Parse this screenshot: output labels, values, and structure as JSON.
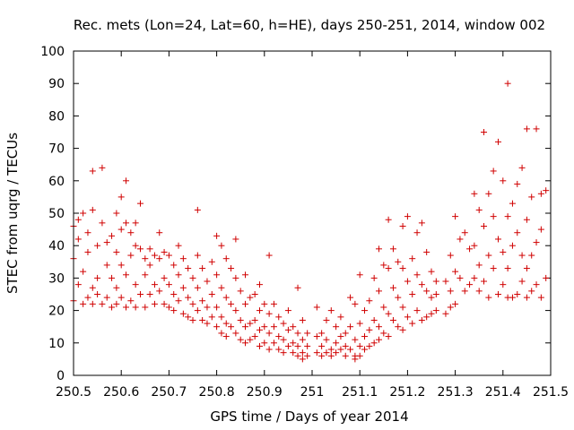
{
  "chart_data": {
    "type": "scatter",
    "title": "Rec. mets (Lon=24, Lat=60, h=HE), days 250-251, 2014, window 002",
    "xlabel": "GPS time / Days of year 2014",
    "ylabel": "STEC from uqrg / TECUs",
    "xlim": [
      250.5,
      251.5
    ],
    "ylim": [
      0,
      100
    ],
    "x_ticks": [
      250.5,
      250.6,
      250.7,
      250.8,
      250.9,
      251.0,
      251.1,
      251.2,
      251.3,
      251.4,
      251.5
    ],
    "x_tick_labels": [
      "250.5",
      "250.6",
      "250.7",
      "250.8",
      "250.9",
      "251",
      "251.1",
      "251.2",
      "251.3",
      "251.4",
      "251.5"
    ],
    "y_ticks": [
      0,
      10,
      20,
      30,
      40,
      50,
      60,
      70,
      80,
      90,
      100
    ],
    "y_tick_labels": [
      "0",
      "10",
      "20",
      "30",
      "40",
      "50",
      "60",
      "70",
      "80",
      "90",
      "100"
    ],
    "grid": false,
    "marker": "plus",
    "marker_color": "#d00000",
    "series": [
      {
        "points": [
          [
            250.5,
            46
          ],
          [
            250.5,
            36
          ],
          [
            250.5,
            23
          ],
          [
            250.51,
            42
          ],
          [
            250.51,
            48
          ],
          [
            250.51,
            28
          ],
          [
            250.52,
            50
          ],
          [
            250.52,
            32
          ],
          [
            250.52,
            22
          ],
          [
            250.53,
            44
          ],
          [
            250.53,
            38
          ],
          [
            250.53,
            24
          ],
          [
            250.54,
            63
          ],
          [
            250.54,
            51
          ],
          [
            250.54,
            27
          ],
          [
            250.54,
            22
          ],
          [
            250.55,
            40
          ],
          [
            250.55,
            30
          ],
          [
            250.55,
            25
          ],
          [
            250.56,
            64
          ],
          [
            250.56,
            47
          ],
          [
            250.56,
            22
          ],
          [
            250.57,
            41
          ],
          [
            250.57,
            34
          ],
          [
            250.57,
            24
          ],
          [
            250.58,
            43
          ],
          [
            250.58,
            30
          ],
          [
            250.58,
            21
          ],
          [
            250.59,
            50
          ],
          [
            250.59,
            38
          ],
          [
            250.59,
            27
          ],
          [
            250.59,
            22
          ],
          [
            250.6,
            55
          ],
          [
            250.6,
            45
          ],
          [
            250.6,
            34
          ],
          [
            250.6,
            24
          ],
          [
            250.61,
            60
          ],
          [
            250.61,
            47
          ],
          [
            250.61,
            31
          ],
          [
            250.61,
            21
          ],
          [
            250.62,
            44
          ],
          [
            250.62,
            37
          ],
          [
            250.62,
            23
          ],
          [
            250.63,
            47
          ],
          [
            250.63,
            40
          ],
          [
            250.63,
            28
          ],
          [
            250.63,
            21
          ],
          [
            250.64,
            53
          ],
          [
            250.64,
            39
          ],
          [
            250.64,
            25
          ],
          [
            250.65,
            36
          ],
          [
            250.65,
            31
          ],
          [
            250.65,
            21
          ],
          [
            250.66,
            39
          ],
          [
            250.66,
            34
          ],
          [
            250.66,
            25
          ],
          [
            250.67,
            37
          ],
          [
            250.67,
            28
          ],
          [
            250.67,
            22
          ],
          [
            250.68,
            44
          ],
          [
            250.68,
            36
          ],
          [
            250.68,
            26
          ],
          [
            250.69,
            38
          ],
          [
            250.69,
            30
          ],
          [
            250.69,
            22
          ],
          [
            250.7,
            37
          ],
          [
            250.7,
            28
          ],
          [
            250.7,
            21
          ],
          [
            250.71,
            34
          ],
          [
            250.71,
            25
          ],
          [
            250.71,
            20
          ],
          [
            250.72,
            40
          ],
          [
            250.72,
            31
          ],
          [
            250.72,
            23
          ],
          [
            250.73,
            36
          ],
          [
            250.73,
            27
          ],
          [
            250.73,
            19
          ],
          [
            250.74,
            33
          ],
          [
            250.74,
            24
          ],
          [
            250.74,
            18
          ],
          [
            250.75,
            30
          ],
          [
            250.75,
            22
          ],
          [
            250.75,
            17
          ],
          [
            250.76,
            51
          ],
          [
            250.76,
            37
          ],
          [
            250.76,
            27
          ],
          [
            250.76,
            20
          ],
          [
            250.77,
            33
          ],
          [
            250.77,
            23
          ],
          [
            250.77,
            17
          ],
          [
            250.78,
            29
          ],
          [
            250.78,
            21
          ],
          [
            250.78,
            16
          ],
          [
            250.79,
            35
          ],
          [
            250.79,
            25
          ],
          [
            250.79,
            18
          ],
          [
            250.8,
            43
          ],
          [
            250.8,
            31
          ],
          [
            250.8,
            21
          ],
          [
            250.8,
            15
          ],
          [
            250.81,
            40
          ],
          [
            250.81,
            27
          ],
          [
            250.81,
            18
          ],
          [
            250.81,
            13
          ],
          [
            250.82,
            36
          ],
          [
            250.82,
            24
          ],
          [
            250.82,
            16
          ],
          [
            250.82,
            12
          ],
          [
            250.83,
            33
          ],
          [
            250.83,
            22
          ],
          [
            250.83,
            15
          ],
          [
            250.84,
            42
          ],
          [
            250.84,
            30
          ],
          [
            250.84,
            20
          ],
          [
            250.84,
            13
          ],
          [
            250.85,
            26
          ],
          [
            250.85,
            17
          ],
          [
            250.85,
            11
          ],
          [
            250.86,
            31
          ],
          [
            250.86,
            22
          ],
          [
            250.86,
            15
          ],
          [
            250.86,
            10
          ],
          [
            250.87,
            24
          ],
          [
            250.87,
            16
          ],
          [
            250.87,
            11
          ],
          [
            250.88,
            25
          ],
          [
            250.88,
            17
          ],
          [
            250.88,
            12
          ],
          [
            250.89,
            28
          ],
          [
            250.89,
            20
          ],
          [
            250.89,
            14
          ],
          [
            250.89,
            9
          ],
          [
            250.9,
            22
          ],
          [
            250.9,
            15
          ],
          [
            250.9,
            10
          ],
          [
            250.91,
            37
          ],
          [
            250.91,
            19
          ],
          [
            250.91,
            13
          ],
          [
            250.91,
            8
          ],
          [
            250.92,
            22
          ],
          [
            250.92,
            15
          ],
          [
            250.92,
            10
          ],
          [
            250.93,
            18
          ],
          [
            250.93,
            12
          ],
          [
            250.93,
            8
          ],
          [
            250.94,
            16
          ],
          [
            250.94,
            11
          ],
          [
            250.94,
            7
          ],
          [
            250.95,
            20
          ],
          [
            250.95,
            14
          ],
          [
            250.95,
            9
          ],
          [
            250.96,
            15
          ],
          [
            250.96,
            10
          ],
          [
            250.96,
            7
          ],
          [
            250.97,
            27
          ],
          [
            250.97,
            13
          ],
          [
            250.97,
            9
          ],
          [
            250.97,
            6
          ],
          [
            250.98,
            17
          ],
          [
            250.98,
            11
          ],
          [
            250.98,
            7
          ],
          [
            250.98,
            5
          ],
          [
            250.99,
            13
          ],
          [
            250.99,
            9
          ],
          [
            250.99,
            6
          ],
          [
            251.01,
            21
          ],
          [
            251.01,
            12
          ],
          [
            251.01,
            7
          ],
          [
            251.02,
            13
          ],
          [
            251.02,
            9
          ],
          [
            251.02,
            6
          ],
          [
            251.03,
            17
          ],
          [
            251.03,
            11
          ],
          [
            251.03,
            7
          ],
          [
            251.04,
            20
          ],
          [
            251.04,
            8
          ],
          [
            251.04,
            6
          ],
          [
            251.05,
            15
          ],
          [
            251.05,
            10
          ],
          [
            251.05,
            7
          ],
          [
            251.06,
            18
          ],
          [
            251.06,
            12
          ],
          [
            251.06,
            8
          ],
          [
            251.07,
            13
          ],
          [
            251.07,
            9
          ],
          [
            251.07,
            6
          ],
          [
            251.08,
            24
          ],
          [
            251.08,
            15
          ],
          [
            251.08,
            8
          ],
          [
            251.09,
            22
          ],
          [
            251.09,
            11
          ],
          [
            251.09,
            6
          ],
          [
            251.09,
            5
          ],
          [
            251.1,
            31
          ],
          [
            251.1,
            16
          ],
          [
            251.1,
            9
          ],
          [
            251.1,
            6
          ],
          [
            251.11,
            20
          ],
          [
            251.11,
            12
          ],
          [
            251.11,
            8
          ],
          [
            251.12,
            23
          ],
          [
            251.12,
            14
          ],
          [
            251.12,
            9
          ],
          [
            251.13,
            30
          ],
          [
            251.13,
            17
          ],
          [
            251.13,
            10
          ],
          [
            251.14,
            39
          ],
          [
            251.14,
            26
          ],
          [
            251.14,
            15
          ],
          [
            251.14,
            11
          ],
          [
            251.15,
            34
          ],
          [
            251.15,
            21
          ],
          [
            251.15,
            13
          ],
          [
            251.16,
            48
          ],
          [
            251.16,
            33
          ],
          [
            251.16,
            19
          ],
          [
            251.16,
            12
          ],
          [
            251.17,
            39
          ],
          [
            251.17,
            27
          ],
          [
            251.17,
            17
          ],
          [
            251.18,
            35
          ],
          [
            251.18,
            24
          ],
          [
            251.18,
            15
          ],
          [
            251.19,
            46
          ],
          [
            251.19,
            33
          ],
          [
            251.19,
            21
          ],
          [
            251.19,
            14
          ],
          [
            251.2,
            49
          ],
          [
            251.2,
            29
          ],
          [
            251.2,
            18
          ],
          [
            251.21,
            36
          ],
          [
            251.21,
            25
          ],
          [
            251.21,
            16
          ],
          [
            251.22,
            44
          ],
          [
            251.22,
            31
          ],
          [
            251.22,
            20
          ],
          [
            251.23,
            47
          ],
          [
            251.23,
            28
          ],
          [
            251.23,
            17
          ],
          [
            251.24,
            38
          ],
          [
            251.24,
            26
          ],
          [
            251.24,
            18
          ],
          [
            251.25,
            32
          ],
          [
            251.25,
            24
          ],
          [
            251.25,
            19
          ],
          [
            251.26,
            29
          ],
          [
            251.26,
            25
          ],
          [
            251.26,
            20
          ],
          [
            251.28,
            29
          ],
          [
            251.28,
            19
          ],
          [
            251.29,
            37
          ],
          [
            251.29,
            26
          ],
          [
            251.29,
            21
          ],
          [
            251.3,
            49
          ],
          [
            251.3,
            32
          ],
          [
            251.3,
            22
          ],
          [
            251.31,
            42
          ],
          [
            251.31,
            30
          ],
          [
            251.32,
            44
          ],
          [
            251.32,
            26
          ],
          [
            251.33,
            39
          ],
          [
            251.33,
            28
          ],
          [
            251.34,
            56
          ],
          [
            251.34,
            40
          ],
          [
            251.34,
            30
          ],
          [
            251.35,
            51
          ],
          [
            251.35,
            34
          ],
          [
            251.35,
            26
          ],
          [
            251.36,
            75
          ],
          [
            251.36,
            46
          ],
          [
            251.36,
            29
          ],
          [
            251.37,
            56
          ],
          [
            251.37,
            37
          ],
          [
            251.37,
            24
          ],
          [
            251.38,
            63
          ],
          [
            251.38,
            49
          ],
          [
            251.38,
            33
          ],
          [
            251.39,
            72
          ],
          [
            251.39,
            42
          ],
          [
            251.39,
            25
          ],
          [
            251.4,
            60
          ],
          [
            251.4,
            38
          ],
          [
            251.4,
            28
          ],
          [
            251.41,
            90
          ],
          [
            251.41,
            49
          ],
          [
            251.41,
            33
          ],
          [
            251.41,
            24
          ],
          [
            251.42,
            53
          ],
          [
            251.42,
            40
          ],
          [
            251.42,
            24
          ],
          [
            251.43,
            59
          ],
          [
            251.43,
            44
          ],
          [
            251.43,
            25
          ],
          [
            251.44,
            64
          ],
          [
            251.44,
            37
          ],
          [
            251.44,
            29
          ],
          [
            251.45,
            76
          ],
          [
            251.45,
            48
          ],
          [
            251.45,
            33
          ],
          [
            251.45,
            24
          ],
          [
            251.46,
            55
          ],
          [
            251.46,
            37
          ],
          [
            251.46,
            26
          ],
          [
            251.47,
            76
          ],
          [
            251.47,
            41
          ],
          [
            251.47,
            28
          ],
          [
            251.48,
            56
          ],
          [
            251.48,
            45
          ],
          [
            251.48,
            24
          ],
          [
            251.49,
            57
          ],
          [
            251.49,
            30
          ]
        ]
      }
    ]
  }
}
